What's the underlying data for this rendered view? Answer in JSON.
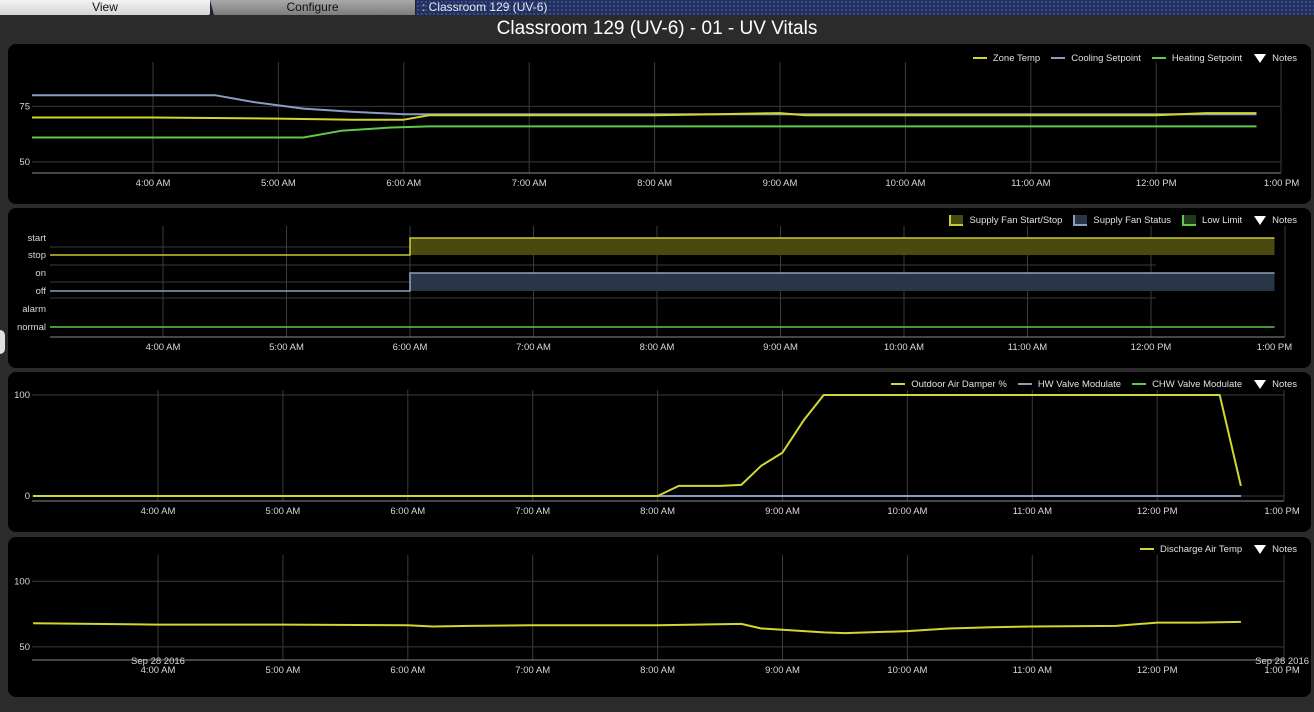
{
  "tabs": {
    "view": "View",
    "configure": "Configure"
  },
  "breadcrumb": ": Classroom 129 (UV-6)",
  "page_title": "Classroom 129 (UV-6) - 01 - UV Vitals",
  "notes_label": "Notes",
  "chart_data": [
    {
      "type": "line",
      "x_ticks": [
        "4:00 AM",
        "5:00 AM",
        "6:00 AM",
        "7:00 AM",
        "8:00 AM",
        "9:00 AM",
        "10:00 AM",
        "11:00 AM",
        "12:00 PM",
        "1:00 PM"
      ],
      "y_ticks": [
        "75",
        "50"
      ],
      "ylim": [
        45,
        95
      ],
      "series": [
        {
          "name": "Zone Temp",
          "color": "#d2d631",
          "points": [
            [
              3.0,
              70
            ],
            [
              4.0,
              70
            ],
            [
              5.0,
              69.5
            ],
            [
              5.6,
              69
            ],
            [
              6.0,
              69
            ],
            [
              6.2,
              71
            ],
            [
              7.0,
              71
            ],
            [
              8.0,
              71
            ],
            [
              8.5,
              71.5
            ],
            [
              9.0,
              72
            ],
            [
              9.2,
              71
            ],
            [
              10.0,
              71
            ],
            [
              11.0,
              71
            ],
            [
              12.0,
              71
            ],
            [
              12.4,
              72
            ],
            [
              12.8,
              72
            ]
          ]
        },
        {
          "name": "Cooling Setpoint",
          "color": "#8a9cc0",
          "points": [
            [
              3.0,
              80
            ],
            [
              4.5,
              80
            ],
            [
              4.8,
              77
            ],
            [
              5.2,
              74
            ],
            [
              5.6,
              72.5
            ],
            [
              6.0,
              71.5
            ],
            [
              12.8,
              71.5
            ]
          ]
        },
        {
          "name": "Heating Setpoint",
          "color": "#5ec94a",
          "points": [
            [
              3.0,
              61
            ],
            [
              5.2,
              61
            ],
            [
              5.5,
              64
            ],
            [
              5.9,
              65.5
            ],
            [
              6.2,
              66
            ],
            [
              12.8,
              66
            ]
          ]
        }
      ]
    },
    {
      "type": "step",
      "x_ticks": [
        "4:00 AM",
        "5:00 AM",
        "6:00 AM",
        "7:00 AM",
        "8:00 AM",
        "9:00 AM",
        "10:00 AM",
        "11:00 AM",
        "12:00 PM",
        "1:00 PM"
      ],
      "y_labels": [
        "start",
        "stop",
        "on",
        "off",
        "alarm",
        "normal"
      ],
      "series": [
        {
          "name": "Supply Fan Start/Stop",
          "color": "#c8c832",
          "states": [
            [
              "stop",
              3.0,
              6.0
            ],
            [
              "start",
              6.0,
              13.0
            ]
          ]
        },
        {
          "name": "Supply Fan Status",
          "color": "#8aa0c0",
          "states": [
            [
              "off",
              3.0,
              6.0
            ],
            [
              "on",
              6.0,
              13.0
            ]
          ]
        },
        {
          "name": "Low Limit",
          "color": "#5ec94a",
          "states": [
            [
              "normal",
              3.0,
              13.0
            ]
          ]
        }
      ]
    },
    {
      "type": "line",
      "x_ticks": [
        "4:00 AM",
        "5:00 AM",
        "6:00 AM",
        "7:00 AM",
        "8:00 AM",
        "9:00 AM",
        "10:00 AM",
        "11:00 AM",
        "12:00 PM",
        "1:00 PM"
      ],
      "y_ticks": [
        "100",
        "0"
      ],
      "ylim": [
        -5,
        105
      ],
      "series": [
        {
          "name": "Outdoor Air Damper %",
          "color": "#d2d631",
          "points": [
            [
              3.0,
              0
            ],
            [
              8.0,
              0
            ],
            [
              8.17,
              10
            ],
            [
              8.5,
              10
            ],
            [
              8.67,
              11
            ],
            [
              8.83,
              30
            ],
            [
              9.0,
              43
            ],
            [
              9.17,
              75
            ],
            [
              9.33,
              100
            ],
            [
              12.5,
              100
            ],
            [
              12.67,
              10
            ]
          ]
        },
        {
          "name": "HW Valve Modulate",
          "color": "#8a9cc0",
          "points": [
            [
              3.0,
              0
            ],
            [
              12.67,
              0
            ]
          ]
        },
        {
          "name": "CHW Valve Modulate",
          "color": "#5ec94a",
          "points": [
            [
              3.0,
              0
            ],
            [
              12.67,
              0
            ]
          ]
        }
      ]
    },
    {
      "type": "line",
      "x_ticks": [
        "4:00 AM",
        "5:00 AM",
        "6:00 AM",
        "7:00 AM",
        "8:00 AM",
        "9:00 AM",
        "10:00 AM",
        "11:00 AM",
        "12:00 PM",
        "1:00 PM"
      ],
      "x_date_first": "Sep 28 2016",
      "x_date_last": "Sep 28 2016",
      "y_ticks": [
        "100",
        "50"
      ],
      "ylim": [
        40,
        120
      ],
      "series": [
        {
          "name": "Discharge Air Temp",
          "color": "#d2d631",
          "points": [
            [
              3.0,
              68
            ],
            [
              4.0,
              67
            ],
            [
              5.0,
              67
            ],
            [
              6.0,
              66.5
            ],
            [
              6.2,
              65.5
            ],
            [
              6.5,
              66
            ],
            [
              7.0,
              66.5
            ],
            [
              8.0,
              66.5
            ],
            [
              8.67,
              67.5
            ],
            [
              8.83,
              64
            ],
            [
              9.0,
              63
            ],
            [
              9.33,
              61
            ],
            [
              9.5,
              60.5
            ],
            [
              10.0,
              62
            ],
            [
              10.33,
              64
            ],
            [
              10.67,
              65
            ],
            [
              11.0,
              65.5
            ],
            [
              11.67,
              66
            ],
            [
              12.0,
              68.5
            ],
            [
              12.33,
              68.5
            ],
            [
              12.67,
              69
            ]
          ]
        }
      ]
    }
  ]
}
